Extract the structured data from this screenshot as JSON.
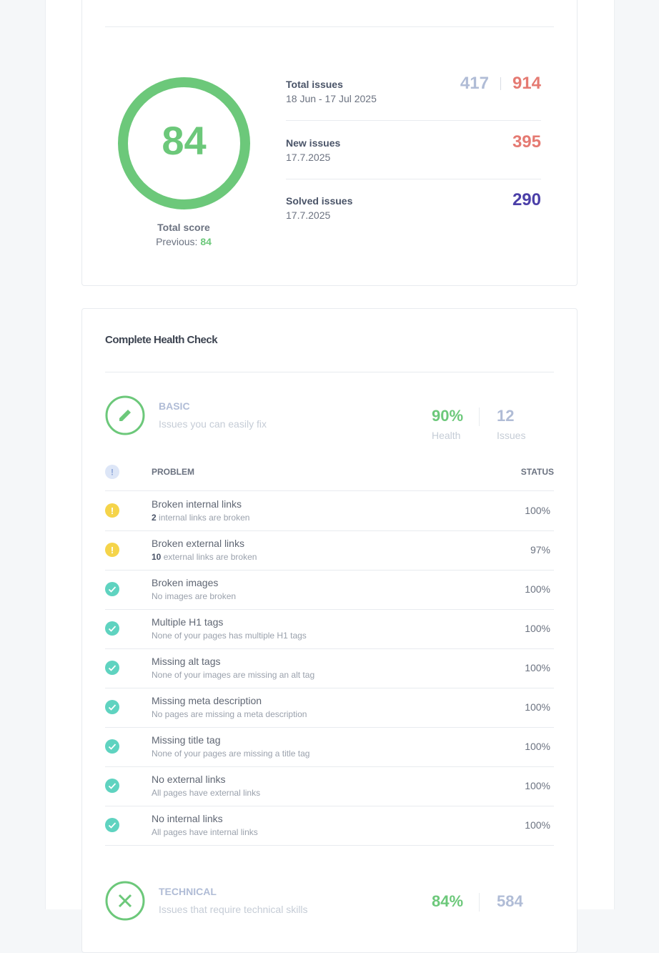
{
  "score": {
    "value": "84",
    "label": "Total score",
    "previous_label": "Previous:",
    "previous": "84"
  },
  "stats": [
    {
      "label": "Total issues",
      "date": "18 Jun - 17 Jul 2025",
      "values": [
        "417",
        "914"
      ]
    },
    {
      "label": "New issues",
      "date": "17.7.2025",
      "values": [
        "395"
      ]
    },
    {
      "label": "Solved issues",
      "date": "17.7.2025",
      "values": [
        "290"
      ]
    }
  ],
  "health_check": {
    "title": "Complete Health Check",
    "sections": [
      {
        "name": "BASIC",
        "description": "Issues you can easily fix",
        "health": "90%",
        "health_label": "Health",
        "issues": "12",
        "issues_label": "Issues",
        "icon": "pencil"
      },
      {
        "name": "TECHNICAL",
        "description": "Issues that require technical skills",
        "health": "84%",
        "issues": "584",
        "icon": "tools"
      }
    ],
    "table": {
      "header": [
        "PROBLEM",
        "STATUS"
      ],
      "rows": [
        {
          "state": "warning",
          "title": "Broken internal links",
          "count": "2",
          "detail": "internal links are broken",
          "status": "100%"
        },
        {
          "state": "warning",
          "title": "Broken external links",
          "count": "10",
          "detail": "external links are broken",
          "status": "97%"
        },
        {
          "state": "ok",
          "title": "Broken images",
          "detail": "No images are broken",
          "status": "100%"
        },
        {
          "state": "ok",
          "title": "Multiple H1 tags",
          "detail": "None of your pages has multiple H1 tags",
          "status": "100%"
        },
        {
          "state": "ok",
          "title": "Missing alt tags",
          "detail": "None of your images are missing an alt tag",
          "status": "100%"
        },
        {
          "state": "ok",
          "title": "Missing meta description",
          "detail": "No pages are missing a meta description",
          "status": "100%"
        },
        {
          "state": "ok",
          "title": "Missing title tag",
          "detail": "None of your pages are missing a title tag",
          "status": "100%"
        },
        {
          "state": "ok",
          "title": "No external links",
          "detail": "All pages have external links",
          "status": "100%"
        },
        {
          "state": "ok",
          "title": "No internal links",
          "detail": "All pages have internal links",
          "status": "100%"
        }
      ]
    }
  }
}
